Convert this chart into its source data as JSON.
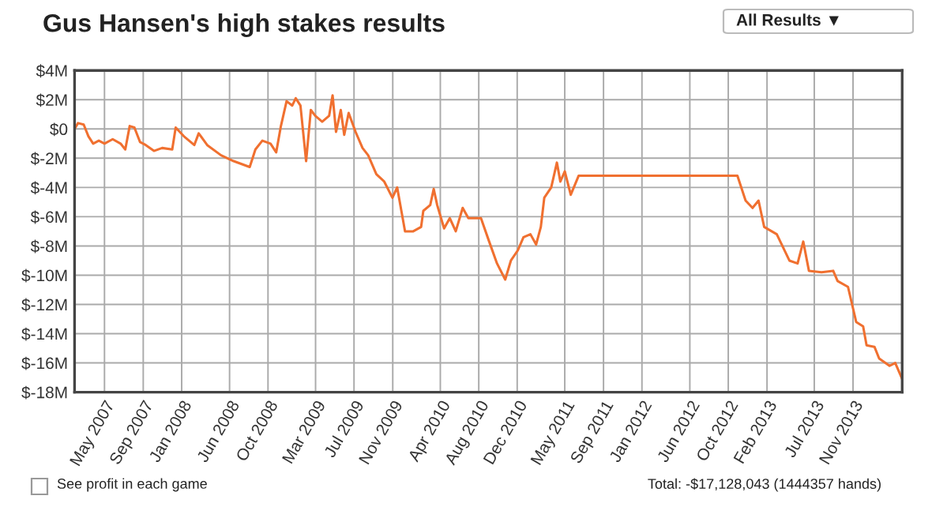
{
  "chart_data": {
    "type": "line",
    "title": "Gus Hansen's high stakes results",
    "annotations": [
      "All Results ▼",
      "See profit in each game",
      "Total: -$17,128,043 (1444357 hands)"
    ],
    "x": [
      "2007-01-26",
      "2007-02-06",
      "2007-02-24",
      "2007-03-11",
      "2007-03-26",
      "2007-04-13",
      "2007-05-01",
      "2007-05-27",
      "2007-06-21",
      "2007-07-06",
      "2007-07-20",
      "2007-08-04",
      "2007-08-22",
      "2007-09-09",
      "2007-10-05",
      "2007-10-31",
      "2007-12-02",
      "2007-12-13",
      "2008-01-08",
      "2008-02-10",
      "2008-02-24",
      "2008-03-22",
      "2008-05-05",
      "2008-06-14",
      "2008-08-04",
      "2008-08-22",
      "2008-09-13",
      "2008-10-09",
      "2008-10-27",
      "2008-11-11",
      "2008-11-29",
      "2008-12-17",
      "2008-12-28",
      "2009-01-12",
      "2009-01-30",
      "2009-02-14",
      "2009-02-28",
      "2009-03-22",
      "2009-04-13",
      "2009-04-24",
      "2009-05-05",
      "2009-05-20",
      "2009-05-31",
      "2009-06-14",
      "2009-07-06",
      "2009-07-28",
      "2009-08-15",
      "2009-09-10",
      "2009-10-05",
      "2009-10-31",
      "2009-11-15",
      "2009-12-10",
      "2010-01-05",
      "2010-01-30",
      "2010-02-06",
      "2010-02-28",
      "2010-03-11",
      "2010-03-22",
      "2010-04-13",
      "2010-05-01",
      "2010-05-20",
      "2010-06-11",
      "2010-06-29",
      "2010-08-08",
      "2010-09-03",
      "2010-09-28",
      "2010-10-24",
      "2010-11-11",
      "2010-12-03",
      "2010-12-21",
      "2011-01-12",
      "2011-01-30",
      "2011-02-14",
      "2011-02-25",
      "2011-03-19",
      "2011-04-06",
      "2011-04-17",
      "2011-05-01",
      "2011-05-20",
      "2011-06-14",
      "2012-10-30",
      "2012-11-25",
      "2012-12-17",
      "2013-01-05",
      "2013-01-23",
      "2013-03-04",
      "2013-04-13",
      "2013-05-09",
      "2013-05-27",
      "2013-06-14",
      "2013-07-24",
      "2013-08-30",
      "2013-09-13",
      "2013-10-16",
      "2013-11-11",
      "2013-12-03",
      "2013-12-14",
      "2014-01-08",
      "2014-01-23",
      "2014-02-25",
      "2014-03-15",
      "2014-04-06"
    ],
    "series": [
      {
        "color": "#f07030",
        "values": [
          0.0,
          0.4,
          0.3,
          -0.5,
          -1.0,
          -0.8,
          -1.0,
          -0.7,
          -1.0,
          -1.4,
          0.2,
          0.1,
          -0.9,
          -1.1,
          -1.5,
          -1.3,
          -1.4,
          0.1,
          -0.5,
          -1.1,
          -0.3,
          -1.1,
          -1.8,
          -2.2,
          -2.6,
          -1.4,
          -0.8,
          -1.0,
          -1.6,
          0.2,
          1.9,
          1.6,
          2.1,
          1.6,
          -2.2,
          1.3,
          0.9,
          0.5,
          0.9,
          2.3,
          -0.2,
          1.3,
          -0.4,
          1.1,
          -0.2,
          -1.3,
          -1.8,
          -3.1,
          -3.6,
          -4.7,
          -4.0,
          -7.0,
          -7.0,
          -6.7,
          -5.6,
          -5.2,
          -4.1,
          -5.2,
          -6.8,
          -6.1,
          -7.0,
          -5.4,
          -6.1,
          -6.1,
          -7.7,
          -9.2,
          -10.3,
          -9.0,
          -8.3,
          -7.4,
          -7.2,
          -7.9,
          -6.7,
          -4.7,
          -4.0,
          -2.3,
          -3.6,
          -2.9,
          -4.5,
          -3.2,
          -3.2,
          -4.9,
          -5.4,
          -4.9,
          -6.7,
          -7.2,
          -9.0,
          -9.2,
          -7.7,
          -9.7,
          -9.8,
          -9.7,
          -10.4,
          -10.8,
          -13.2,
          -13.5,
          -14.8,
          -14.9,
          -15.7,
          -16.2,
          -16.0,
          -17.1
        ]
      }
    ],
    "xlim": [
      "2007-01-26",
      "2014-04-06"
    ],
    "xticks": [
      {
        "value": "2007-05",
        "label": "May 2007"
      },
      {
        "value": "2007-09",
        "label": "Sep 2007"
      },
      {
        "value": "2008-01",
        "label": "Jan 2008"
      },
      {
        "value": "2008-06",
        "label": "Jun 2008"
      },
      {
        "value": "2008-10",
        "label": "Oct 2008"
      },
      {
        "value": "2009-03",
        "label": "Mar 2009"
      },
      {
        "value": "2009-07",
        "label": "Jul 2009"
      },
      {
        "value": "2009-11",
        "label": "Nov 2009"
      },
      {
        "value": "2010-04",
        "label": "Apr 2010"
      },
      {
        "value": "2010-08",
        "label": "Aug 2010"
      },
      {
        "value": "2010-12",
        "label": "Dec 2010"
      },
      {
        "value": "2011-05",
        "label": "May 2011"
      },
      {
        "value": "2011-09",
        "label": "Sep 2011"
      },
      {
        "value": "2012-01",
        "label": "Jan 2012"
      },
      {
        "value": "2012-06",
        "label": "Jun 2012"
      },
      {
        "value": "2012-10",
        "label": "Oct 2012"
      },
      {
        "value": "2013-02",
        "label": "Feb 2013"
      },
      {
        "value": "2013-07",
        "label": "Jul 2013"
      },
      {
        "value": "2013-11",
        "label": "Nov 2013"
      }
    ],
    "ylim": [
      -18,
      4
    ],
    "yticks": [
      {
        "value": 4,
        "label": "$4M"
      },
      {
        "value": 2,
        "label": "$2M"
      },
      {
        "value": 0,
        "label": "$0"
      },
      {
        "value": -2,
        "label": "$-2M"
      },
      {
        "value": -4,
        "label": "$-4M"
      },
      {
        "value": -6,
        "label": "$-6M"
      },
      {
        "value": -8,
        "label": "$-8M"
      },
      {
        "value": -10,
        "label": "$-10M"
      },
      {
        "value": -12,
        "label": "$-12M"
      },
      {
        "value": -14,
        "label": "$-14M"
      },
      {
        "value": -16,
        "label": "$-16M"
      },
      {
        "value": -18,
        "label": "$-18M"
      }
    ],
    "grid": true
  }
}
